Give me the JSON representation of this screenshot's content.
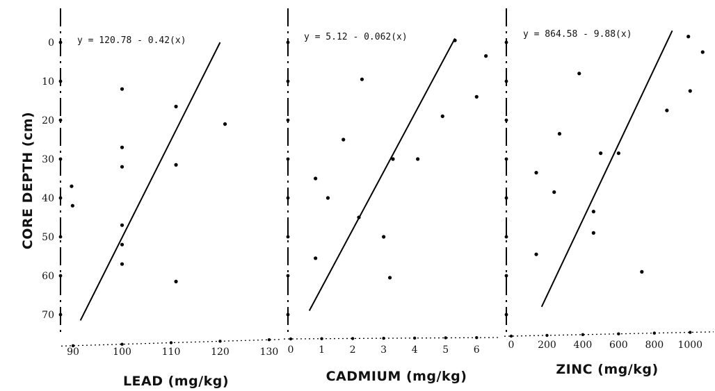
{
  "y_axis": {
    "label": "CORE DEPTH (cm)",
    "tick_labels": [
      "0",
      "10",
      "20",
      "30",
      "40",
      "50",
      "60",
      "70"
    ]
  },
  "chart_data": [
    {
      "type": "scatter",
      "xlabel": "LEAD (mg/kg)",
      "ylabel": "CORE DEPTH (cm)",
      "x_ticks": [
        90,
        100,
        110,
        120,
        130
      ],
      "x_tick_labels": [
        "90",
        "100",
        "110",
        "120",
        "130"
      ],
      "y_ticks": [
        0,
        10,
        20,
        30,
        40,
        50,
        60,
        70
      ],
      "xlim": [
        89,
        131
      ],
      "ylim": [
        0,
        70
      ],
      "y_inverted": true,
      "equation": "y = 120.78 - 0.42(x)",
      "fit_line": [
        [
          91.5,
          71.5
        ],
        [
          120,
          0
        ]
      ],
      "points": [
        {
          "x": 89.7,
          "y": 37
        },
        {
          "x": 89.9,
          "y": 42
        },
        {
          "x": 100,
          "y": 12
        },
        {
          "x": 100,
          "y": 27
        },
        {
          "x": 100,
          "y": 32
        },
        {
          "x": 100,
          "y": 47
        },
        {
          "x": 100,
          "y": 52
        },
        {
          "x": 100,
          "y": 57
        },
        {
          "x": 111,
          "y": 16.5
        },
        {
          "x": 111,
          "y": 31.5
        },
        {
          "x": 111,
          "y": 61.5
        },
        {
          "x": 121,
          "y": 21
        }
      ]
    },
    {
      "type": "scatter",
      "xlabel": "CADMIUM (mg/kg)",
      "ylabel": "CORE DEPTH (cm)",
      "x_ticks": [
        0,
        1,
        2,
        3,
        4,
        5,
        6
      ],
      "x_tick_labels": [
        "0",
        "1",
        "2",
        "3",
        "4",
        "5",
        "6"
      ],
      "y_ticks": [
        0,
        10,
        20,
        30,
        40,
        50,
        60,
        70
      ],
      "xlim": [
        0,
        6.6
      ],
      "ylim": [
        0,
        70
      ],
      "y_inverted": true,
      "equation": "y = 5.12 - 0.062(x)",
      "fit_line": [
        [
          0.6,
          69
        ],
        [
          5.3,
          -1
        ]
      ],
      "points": [
        {
          "x": 0.8,
          "y": 35
        },
        {
          "x": 0.8,
          "y": 55.5
        },
        {
          "x": 1.2,
          "y": 40
        },
        {
          "x": 1.7,
          "y": 25
        },
        {
          "x": 2.2,
          "y": 45
        },
        {
          "x": 2.3,
          "y": 9.5
        },
        {
          "x": 3.0,
          "y": 50
        },
        {
          "x": 3.2,
          "y": 60.5
        },
        {
          "x": 3.3,
          "y": 30
        },
        {
          "x": 4.1,
          "y": 30
        },
        {
          "x": 4.9,
          "y": 19
        },
        {
          "x": 5.3,
          "y": -0.5
        },
        {
          "x": 6.0,
          "y": 14
        },
        {
          "x": 6.3,
          "y": 3.5
        }
      ]
    },
    {
      "type": "scatter",
      "xlabel": "ZINC (mg/kg)",
      "ylabel": "CORE DEPTH (cm)",
      "x_ticks": [
        0,
        200,
        400,
        600,
        800,
        1000
      ],
      "x_tick_labels": [
        "0",
        "200",
        "400",
        "600",
        "800",
        "1000"
      ],
      "y_ticks": [
        0,
        10,
        20,
        30,
        40,
        50,
        60,
        70
      ],
      "xlim": [
        0,
        1100
      ],
      "ylim": [
        0,
        70
      ],
      "y_inverted": true,
      "equation": "y = 864.58 - 9.88(x)",
      "fit_line": [
        [
          170,
          68
        ],
        [
          900,
          -3
        ]
      ],
      "points": [
        {
          "x": 140,
          "y": 33.5
        },
        {
          "x": 140,
          "y": 54.5
        },
        {
          "x": 270,
          "y": 23.5
        },
        {
          "x": 240,
          "y": 38.5
        },
        {
          "x": 380,
          "y": 8
        },
        {
          "x": 460,
          "y": 43.5
        },
        {
          "x": 460,
          "y": 49
        },
        {
          "x": 500,
          "y": 28.5
        },
        {
          "x": 600,
          "y": 28.5
        },
        {
          "x": 730,
          "y": 59
        },
        {
          "x": 870,
          "y": 17.5
        },
        {
          "x": 1000,
          "y": 12.5
        },
        {
          "x": 990,
          "y": -1.5
        },
        {
          "x": 1070,
          "y": 2.5
        }
      ]
    }
  ]
}
